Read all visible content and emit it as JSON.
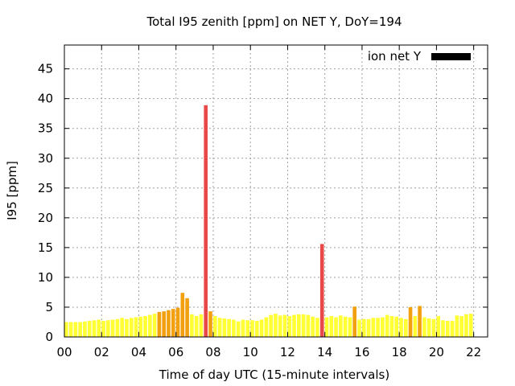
{
  "chart_data": {
    "type": "bar",
    "title": "Total I95 zenith [ppm] on NET Y, DoY=194",
    "xlabel": "Time of day UTC (15-minute intervals)",
    "ylabel": "I95 [ppm]",
    "xlim": [
      0,
      22.75
    ],
    "ylim": [
      0,
      49
    ],
    "interval_hours": 0.25,
    "x_ticks": [
      {
        "value": 0,
        "label": "00"
      },
      {
        "value": 2,
        "label": "02"
      },
      {
        "value": 4,
        "label": "04"
      },
      {
        "value": 6,
        "label": "06"
      },
      {
        "value": 8,
        "label": "08"
      },
      {
        "value": 10,
        "label": "10"
      },
      {
        "value": 12,
        "label": "12"
      },
      {
        "value": 14,
        "label": "14"
      },
      {
        "value": 16,
        "label": "16"
      },
      {
        "value": 18,
        "label": "18"
      },
      {
        "value": 20,
        "label": "20"
      },
      {
        "value": 22,
        "label": "22"
      }
    ],
    "y_ticks": [
      {
        "value": 0,
        "label": "0"
      },
      {
        "value": 5,
        "label": "5"
      },
      {
        "value": 10,
        "label": "10"
      },
      {
        "value": 15,
        "label": "15"
      },
      {
        "value": 20,
        "label": "20"
      },
      {
        "value": 25,
        "label": "25"
      },
      {
        "value": 30,
        "label": "30"
      },
      {
        "value": 35,
        "label": "35"
      },
      {
        "value": 40,
        "label": "40"
      },
      {
        "value": 45,
        "label": "45"
      }
    ],
    "grid": true,
    "legend": {
      "label": "ion net Y",
      "position": "top-right",
      "color": "#000000"
    },
    "color_scale": [
      {
        "max": 4,
        "color": "#ffff33"
      },
      {
        "max": 10,
        "color": "#f2a010"
      },
      {
        "max": 1000,
        "color": "#e84848"
      }
    ],
    "values": [
      2.5,
      2.5,
      2.5,
      2.5,
      2.6,
      2.7,
      2.8,
      2.9,
      2.7,
      2.8,
      2.9,
      3.0,
      3.2,
      3.0,
      3.2,
      3.3,
      3.4,
      3.5,
      3.7,
      3.9,
      4.2,
      4.3,
      4.5,
      4.7,
      4.9,
      7.4,
      6.5,
      3.8,
      3.5,
      3.8,
      38.9,
      4.3,
      3.5,
      3.2,
      3.1,
      3.0,
      2.9,
      2.6,
      2.9,
      2.8,
      2.8,
      2.7,
      2.9,
      3.3,
      3.7,
      3.9,
      3.6,
      3.7,
      3.5,
      3.7,
      3.8,
      3.8,
      3.7,
      3.4,
      3.2,
      15.6,
      3.3,
      3.5,
      3.3,
      3.6,
      3.4,
      3.3,
      5.1,
      2.9,
      3.0,
      3.0,
      3.2,
      3.2,
      3.3,
      3.7,
      3.5,
      3.4,
      3.2,
      3.0,
      5.0,
      3.5,
      5.2,
      3.3,
      3.1,
      3.0,
      3.5,
      2.8,
      2.7,
      2.7,
      3.6,
      3.5,
      3.8,
      3.9
    ]
  }
}
